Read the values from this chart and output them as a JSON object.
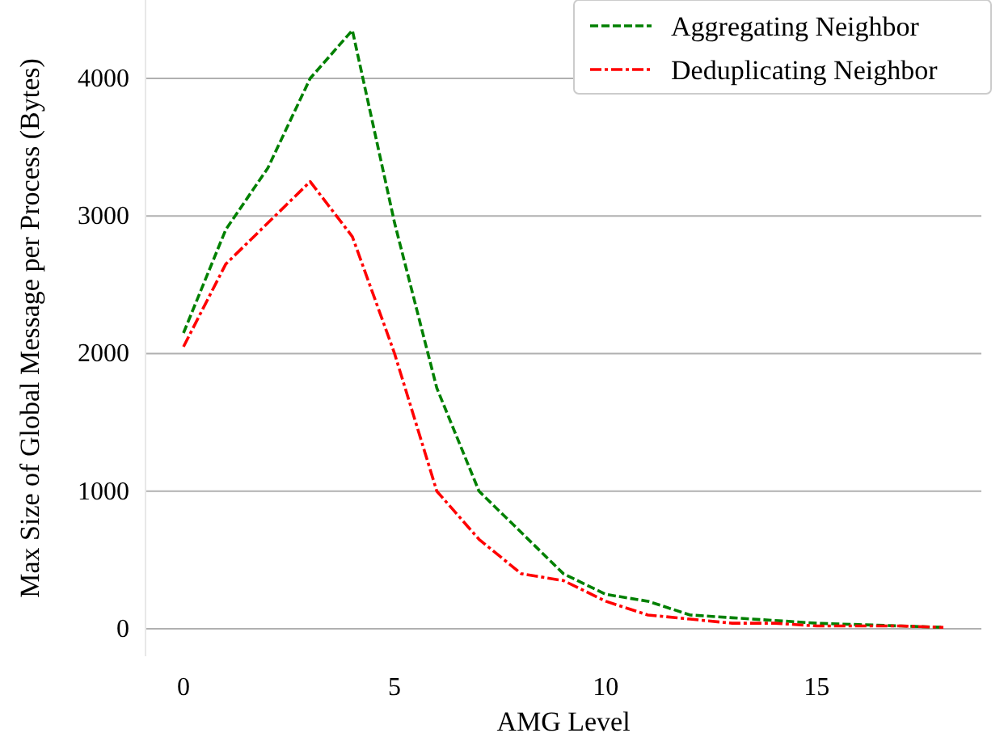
{
  "chart_data": {
    "type": "line",
    "xlabel": "AMG Level",
    "ylabel": "Max Size of Global Message per Process (Bytes)",
    "x": [
      0,
      1,
      2,
      3,
      4,
      5,
      6,
      7,
      8,
      9,
      10,
      11,
      12,
      13,
      14,
      15,
      16,
      17,
      18
    ],
    "series": [
      {
        "name": "Aggregating Neighbor",
        "color": "#008000",
        "line_style": "dashed",
        "values": [
          2150,
          2900,
          3350,
          4000,
          4350,
          2950,
          1750,
          1000,
          700,
          400,
          250,
          200,
          100,
          80,
          60,
          40,
          30,
          20,
          10
        ]
      },
      {
        "name": "Deduplicating Neighbor",
        "color": "#ff0000",
        "line_style": "dashdot",
        "values": [
          2050,
          2650,
          2950,
          3250,
          2850,
          2000,
          1000,
          650,
          400,
          350,
          200,
          100,
          70,
          40,
          40,
          20,
          20,
          20,
          10
        ]
      }
    ],
    "xlim": [
      -0.9,
      18.9
    ],
    "xticks": [
      0,
      5,
      10,
      15
    ],
    "ylim": [
      -200,
      4570
    ],
    "yticks": [
      0,
      1000,
      2000,
      3000,
      4000
    ],
    "grid": "y",
    "legend": "top right",
    "marker": "none"
  }
}
